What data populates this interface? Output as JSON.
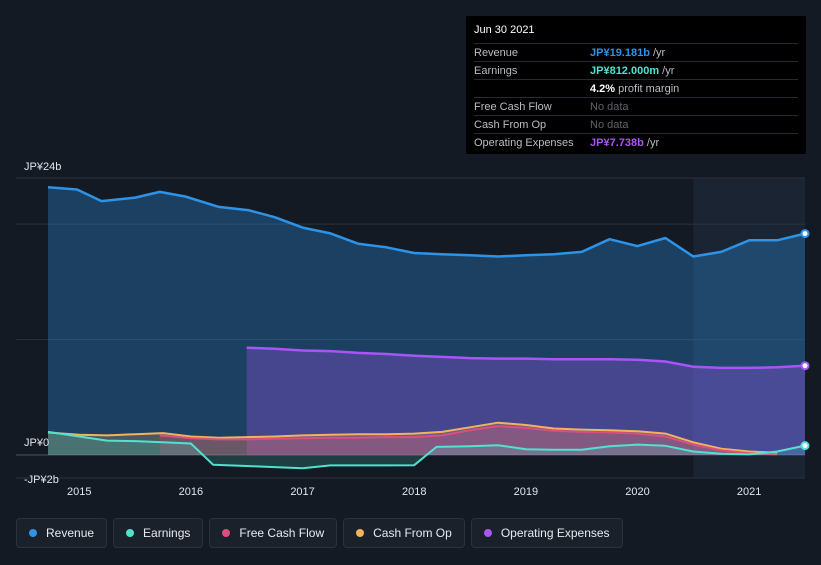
{
  "chart_data": {
    "type": "area",
    "y_unit": "JP¥",
    "ylim": [
      -2,
      24
    ],
    "y_tick_labels": [
      {
        "value": 24,
        "label": "JP¥24b"
      },
      {
        "value": 0,
        "label": "JP¥0"
      },
      {
        "value": -2,
        "label": "-JP¥2b"
      }
    ],
    "xlim": [
      2014.7,
      2021.5
    ],
    "x_ticks": [
      2015,
      2016,
      2017,
      2018,
      2019,
      2020,
      2021
    ],
    "x_tick_labels": [
      "2015",
      "2016",
      "2017",
      "2018",
      "2019",
      "2020",
      "2021"
    ],
    "gridlines": [
      24,
      20,
      10,
      0
    ],
    "highlight_start": 2020.5,
    "series": [
      {
        "key": "revenue",
        "name": "Revenue",
        "color": "#2e93e6",
        "fill": true,
        "points": [
          [
            2014.72,
            23.2
          ],
          [
            2014.98,
            23.0
          ],
          [
            2015.2,
            22.0
          ],
          [
            2015.5,
            22.3
          ],
          [
            2015.72,
            22.8
          ],
          [
            2015.95,
            22.4
          ],
          [
            2016.25,
            21.5
          ],
          [
            2016.52,
            21.2
          ],
          [
            2016.75,
            20.6
          ],
          [
            2017.0,
            19.7
          ],
          [
            2017.25,
            19.2
          ],
          [
            2017.5,
            18.3
          ],
          [
            2017.75,
            18.0
          ],
          [
            2018.0,
            17.5
          ],
          [
            2018.25,
            17.4
          ],
          [
            2018.5,
            17.3
          ],
          [
            2018.75,
            17.2
          ],
          [
            2019.0,
            17.3
          ],
          [
            2019.25,
            17.4
          ],
          [
            2019.5,
            17.6
          ],
          [
            2019.75,
            18.7
          ],
          [
            2020.0,
            18.1
          ],
          [
            2020.25,
            18.8
          ],
          [
            2020.5,
            17.2
          ],
          [
            2020.75,
            17.6
          ],
          [
            2021.0,
            18.6
          ],
          [
            2021.25,
            18.6
          ],
          [
            2021.5,
            19.181
          ]
        ]
      },
      {
        "key": "opex",
        "name": "Operating Expenses",
        "color": "#a855f7",
        "fill": true,
        "points": [
          [
            2016.5,
            9.3
          ],
          [
            2016.75,
            9.2
          ],
          [
            2017.0,
            9.05
          ],
          [
            2017.25,
            9.0
          ],
          [
            2017.5,
            8.85
          ],
          [
            2017.75,
            8.75
          ],
          [
            2018.0,
            8.6
          ],
          [
            2018.25,
            8.5
          ],
          [
            2018.5,
            8.4
          ],
          [
            2018.75,
            8.35
          ],
          [
            2019.0,
            8.35
          ],
          [
            2019.25,
            8.3
          ],
          [
            2019.5,
            8.3
          ],
          [
            2019.75,
            8.3
          ],
          [
            2020.0,
            8.25
          ],
          [
            2020.25,
            8.1
          ],
          [
            2020.5,
            7.65
          ],
          [
            2020.75,
            7.55
          ],
          [
            2021.0,
            7.55
          ],
          [
            2021.25,
            7.6
          ],
          [
            2021.5,
            7.738
          ]
        ]
      },
      {
        "key": "cfo",
        "name": "Cash From Op",
        "color": "#f2b35c",
        "fill": true,
        "points": [
          [
            2014.72,
            1.95
          ],
          [
            2015.0,
            1.75
          ],
          [
            2015.25,
            1.7
          ],
          [
            2015.5,
            1.8
          ],
          [
            2015.75,
            1.9
          ],
          [
            2016.0,
            1.6
          ],
          [
            2016.25,
            1.5
          ],
          [
            2016.5,
            1.55
          ],
          [
            2016.75,
            1.6
          ],
          [
            2017.0,
            1.7
          ],
          [
            2017.25,
            1.75
          ],
          [
            2017.5,
            1.8
          ],
          [
            2017.75,
            1.8
          ],
          [
            2018.0,
            1.85
          ],
          [
            2018.25,
            2.0
          ],
          [
            2018.5,
            2.4
          ],
          [
            2018.75,
            2.8
          ],
          [
            2019.0,
            2.6
          ],
          [
            2019.25,
            2.3
          ],
          [
            2019.5,
            2.2
          ],
          [
            2019.75,
            2.15
          ],
          [
            2020.0,
            2.05
          ],
          [
            2020.25,
            1.85
          ],
          [
            2020.5,
            1.1
          ],
          [
            2020.75,
            0.55
          ],
          [
            2021.0,
            0.3
          ],
          [
            2021.25,
            0.2
          ]
        ]
      },
      {
        "key": "fcf",
        "name": "Free Cash Flow",
        "color": "#d94f7e",
        "fill": true,
        "points": [
          [
            2015.72,
            1.7
          ],
          [
            2016.0,
            1.45
          ],
          [
            2016.25,
            1.35
          ],
          [
            2016.5,
            1.35
          ],
          [
            2016.75,
            1.4
          ],
          [
            2017.0,
            1.45
          ],
          [
            2017.25,
            1.5
          ],
          [
            2017.5,
            1.5
          ],
          [
            2017.75,
            1.55
          ],
          [
            2018.0,
            1.55
          ],
          [
            2018.25,
            1.7
          ],
          [
            2018.5,
            2.15
          ],
          [
            2018.75,
            2.5
          ],
          [
            2019.0,
            2.35
          ],
          [
            2019.25,
            2.1
          ],
          [
            2019.5,
            2.0
          ],
          [
            2019.75,
            1.95
          ],
          [
            2020.0,
            1.85
          ],
          [
            2020.25,
            1.6
          ],
          [
            2020.5,
            0.9
          ],
          [
            2020.75,
            0.4
          ],
          [
            2021.0,
            0.15
          ],
          [
            2021.25,
            0.05
          ]
        ]
      },
      {
        "key": "earnings",
        "name": "Earnings",
        "color": "#4fe3cf",
        "fill": true,
        "points": [
          [
            2014.72,
            2.0
          ],
          [
            2015.0,
            1.6
          ],
          [
            2015.25,
            1.25
          ],
          [
            2015.5,
            1.2
          ],
          [
            2015.75,
            1.1
          ],
          [
            2016.0,
            1.0
          ],
          [
            2016.2,
            -0.85
          ],
          [
            2016.5,
            -0.95
          ],
          [
            2016.75,
            -1.05
          ],
          [
            2017.0,
            -1.15
          ],
          [
            2017.25,
            -0.9
          ],
          [
            2017.5,
            -0.9
          ],
          [
            2017.75,
            -0.9
          ],
          [
            2018.0,
            -0.88
          ],
          [
            2018.2,
            0.7
          ],
          [
            2018.5,
            0.75
          ],
          [
            2018.75,
            0.85
          ],
          [
            2019.0,
            0.5
          ],
          [
            2019.25,
            0.45
          ],
          [
            2019.5,
            0.45
          ],
          [
            2019.75,
            0.75
          ],
          [
            2020.0,
            0.9
          ],
          [
            2020.25,
            0.8
          ],
          [
            2020.5,
            0.3
          ],
          [
            2020.75,
            0.1
          ],
          [
            2021.0,
            0.05
          ],
          [
            2021.25,
            0.3
          ],
          [
            2021.5,
            0.812
          ]
        ]
      }
    ]
  },
  "tooltip": {
    "date": "Jun 30 2021",
    "rows": [
      {
        "label": "Revenue",
        "value": "JP¥19.181b",
        "unit": " /yr"
      },
      {
        "label": "Earnings",
        "value": "JP¥812.000m",
        "unit": " /yr"
      },
      {
        "label": "",
        "value": "4.2%",
        "unit": " profit margin"
      },
      {
        "label": "Free Cash Flow",
        "value": "No data",
        "unit": ""
      },
      {
        "label": "Cash From Op",
        "value": "No data",
        "unit": ""
      },
      {
        "label": "Operating Expenses",
        "value": "JP¥7.738b",
        "unit": " /yr"
      }
    ]
  },
  "legend": [
    {
      "label": "Revenue",
      "color": "#2e93e6"
    },
    {
      "label": "Earnings",
      "color": "#4fe3cf"
    },
    {
      "label": "Free Cash Flow",
      "color": "#d94f7e"
    },
    {
      "label": "Cash From Op",
      "color": "#f2b35c"
    },
    {
      "label": "Operating Expenses",
      "color": "#a855f7"
    }
  ]
}
